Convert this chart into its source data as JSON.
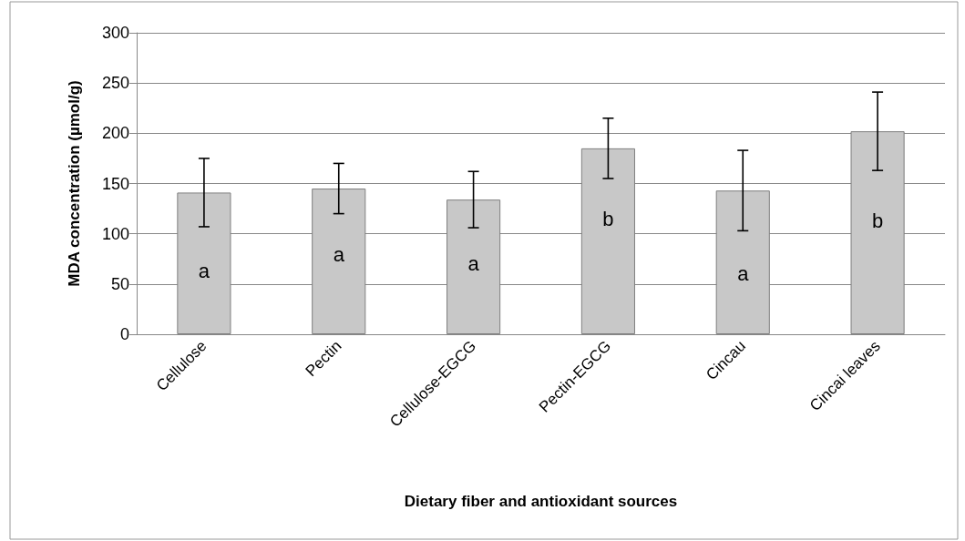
{
  "chart_data": {
    "type": "bar",
    "xlabel": "Dietary fiber and antioxidant sources",
    "ylabel": "MDA concentration (µmol/g)",
    "categories": [
      "Cellulose",
      "Pectin",
      "Cellulose-EGCG",
      "Pectin-EGCG",
      "Cincau",
      "Cincai leaves"
    ],
    "values": [
      141,
      145,
      134,
      185,
      143,
      202
    ],
    "errors": [
      34,
      25,
      28,
      30,
      40,
      39
    ],
    "color": "#c8c8c8",
    "ylim": [
      0,
      300
    ],
    "yticks": [
      0,
      50,
      100,
      150,
      200,
      250,
      300
    ],
    "grid": "y",
    "annotations": [
      {
        "text": "a",
        "x": "Cellulose",
        "y": 63
      },
      {
        "text": "a",
        "x": "Pectin",
        "y": 79
      },
      {
        "text": "a",
        "x": "Cellulose-EGCG",
        "y": 70
      },
      {
        "text": "b",
        "x": "Pectin-EGCG",
        "y": 115
      },
      {
        "text": "a",
        "x": "Cincau",
        "y": 60
      },
      {
        "text": "b",
        "x": "Cincai leaves",
        "y": 113
      }
    ]
  }
}
